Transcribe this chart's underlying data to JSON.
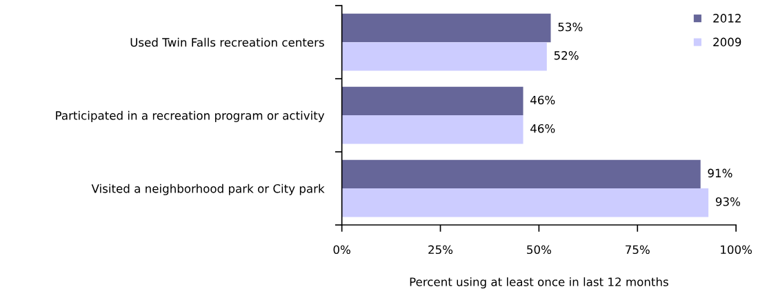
{
  "chart_data": {
    "type": "bar",
    "orientation": "horizontal",
    "categories": [
      "Used Twin Falls recreation centers",
      "Participated in a recreation program or activity",
      "Visited a neighborhood park or City park"
    ],
    "series": [
      {
        "name": "2012",
        "color": "#666699",
        "values": [
          53,
          46,
          91
        ],
        "value_labels": [
          "53%",
          "46%",
          "91%"
        ]
      },
      {
        "name": "2009",
        "color": "#ccccff",
        "values": [
          52,
          46,
          93
        ],
        "value_labels": [
          "52%",
          "46%",
          "93%"
        ]
      }
    ],
    "xlabel": "Percent using at least once in last 12 months",
    "xlim": [
      0,
      100
    ],
    "xticks": [
      {
        "value": 0,
        "label": "0%"
      },
      {
        "value": 25,
        "label": "25%"
      },
      {
        "value": 50,
        "label": "50%"
      },
      {
        "value": 75,
        "label": "75%"
      },
      {
        "value": 100,
        "label": "100%"
      }
    ],
    "legend": "top right"
  }
}
